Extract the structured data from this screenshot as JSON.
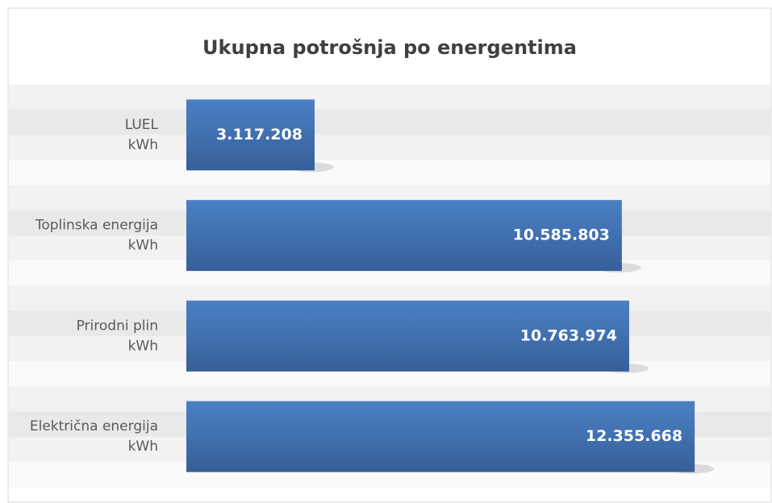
{
  "chart_data": {
    "type": "bar",
    "orientation": "horizontal",
    "title": "Ukupna potrošnja po energentima",
    "categories": [
      [
        "LUEL",
        "kWh"
      ],
      [
        "Toplinska energija",
        "kWh"
      ],
      [
        "Prirodni plin",
        "kWh"
      ],
      [
        "Električna energija",
        "kWh"
      ]
    ],
    "values": [
      3117208,
      10585803,
      10763974,
      12355668
    ],
    "value_labels": [
      "3.117.208",
      "10.585.803",
      "10.763.974",
      "12.355.668"
    ],
    "color": "#4170b0",
    "xlim": [
      0,
      14000000
    ]
  }
}
